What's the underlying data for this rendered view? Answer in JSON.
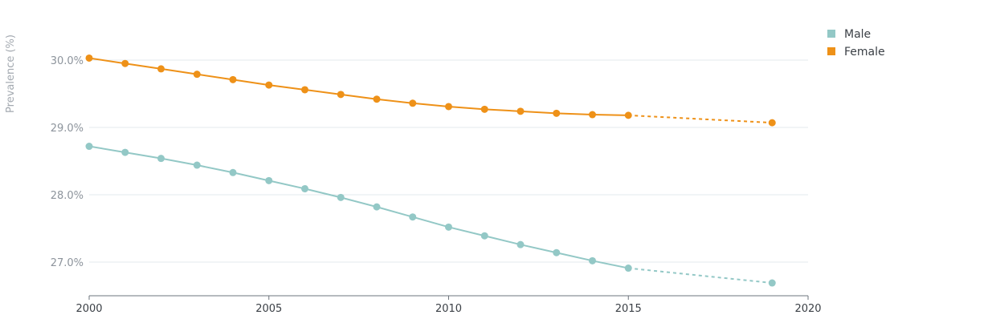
{
  "chart_data": {
    "type": "line",
    "title": "",
    "xlabel": "",
    "ylabel": "Prevalence (%)",
    "xlim": [
      2000,
      2020
    ],
    "ylim": [
      26.5,
      30.5
    ],
    "x_ticks": [
      {
        "value": 2000,
        "label": "2000"
      },
      {
        "value": 2005,
        "label": "2005"
      },
      {
        "value": 2010,
        "label": "2010"
      },
      {
        "value": 2015,
        "label": "2015"
      },
      {
        "value": 2020,
        "label": "2020"
      }
    ],
    "y_ticks": [
      {
        "value": 27,
        "label": "27.0%"
      },
      {
        "value": 28,
        "label": "28.0%"
      },
      {
        "value": 29,
        "label": "29.0%"
      },
      {
        "value": 30,
        "label": "30.0%"
      }
    ],
    "grid": "horizontal",
    "legend_position": "top-right",
    "series": [
      {
        "name": "Male",
        "color": "#93c8c6",
        "x": [
          2000,
          2001,
          2002,
          2003,
          2004,
          2005,
          2006,
          2007,
          2008,
          2009,
          2010,
          2011,
          2012,
          2013,
          2014,
          2015,
          2019
        ],
        "values": [
          28.72,
          28.63,
          28.54,
          28.44,
          28.33,
          28.21,
          28.09,
          27.96,
          27.82,
          27.67,
          27.52,
          27.39,
          27.26,
          27.14,
          27.02,
          26.91,
          26.69
        ],
        "projected_from_index": 15
      },
      {
        "name": "Female",
        "color": "#ee9118",
        "x": [
          2000,
          2001,
          2002,
          2003,
          2004,
          2005,
          2006,
          2007,
          2008,
          2009,
          2010,
          2011,
          2012,
          2013,
          2014,
          2015,
          2019
        ],
        "values": [
          30.03,
          29.95,
          29.87,
          29.79,
          29.71,
          29.63,
          29.56,
          29.49,
          29.42,
          29.36,
          29.31,
          29.27,
          29.24,
          29.21,
          29.19,
          29.18,
          29.07
        ],
        "projected_from_index": 15
      }
    ]
  }
}
